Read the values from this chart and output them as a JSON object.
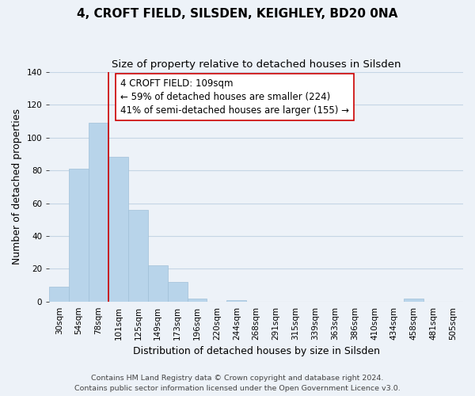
{
  "title": "4, CROFT FIELD, SILSDEN, KEIGHLEY, BD20 0NA",
  "subtitle": "Size of property relative to detached houses in Silsden",
  "xlabel": "Distribution of detached houses by size in Silsden",
  "ylabel": "Number of detached properties",
  "bar_values": [
    9,
    81,
    109,
    88,
    56,
    22,
    12,
    2,
    0,
    1,
    0,
    0,
    0,
    0,
    0,
    0,
    0,
    0,
    2,
    0,
    0
  ],
  "bin_labels": [
    "30sqm",
    "54sqm",
    "78sqm",
    "101sqm",
    "125sqm",
    "149sqm",
    "173sqm",
    "196sqm",
    "220sqm",
    "244sqm",
    "268sqm",
    "291sqm",
    "315sqm",
    "339sqm",
    "363sqm",
    "386sqm",
    "410sqm",
    "434sqm",
    "458sqm",
    "481sqm",
    "505sqm"
  ],
  "bar_color": "#b8d4ea",
  "bar_edge_color": "#a0c0d8",
  "vline_index": 3,
  "annotation_text": "4 CROFT FIELD: 109sqm\n← 59% of detached houses are smaller (224)\n41% of semi-detached houses are larger (155) →",
  "annotation_box_color": "#ffffff",
  "annotation_box_edge": "#cc0000",
  "vline_color": "#cc0000",
  "ylim": [
    0,
    140
  ],
  "yticks": [
    0,
    20,
    40,
    60,
    80,
    100,
    120,
    140
  ],
  "footer_line1": "Contains HM Land Registry data © Crown copyright and database right 2024.",
  "footer_line2": "Contains public sector information licensed under the Open Government Licence v3.0.",
  "bg_color": "#edf2f8",
  "plot_bg_color": "#edf2f8",
  "grid_color": "#c5d5e5",
  "title_fontsize": 11,
  "subtitle_fontsize": 9.5,
  "axis_label_fontsize": 9,
  "tick_fontsize": 7.5,
  "footer_fontsize": 6.8,
  "annotation_fontsize": 8.5
}
